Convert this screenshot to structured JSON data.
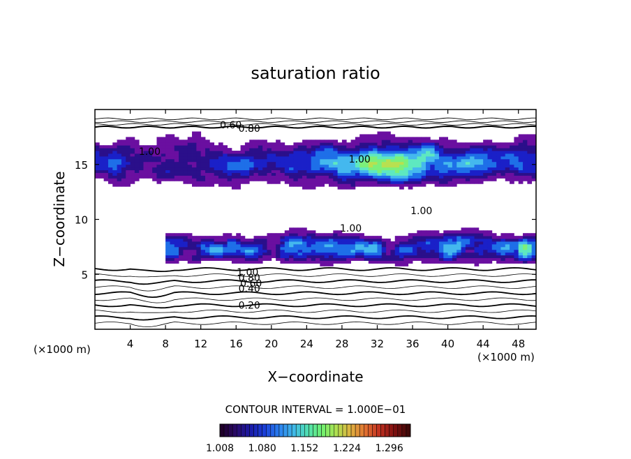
{
  "chart_data": {
    "type": "heatmap",
    "title": "saturation ratio",
    "xlabel": "X−coordinate",
    "ylabel": "Z−coordinate",
    "x_unit": "(×1000 m)",
    "y_unit": "(×1000 m)",
    "xlim": [
      0,
      50
    ],
    "ylim": [
      0,
      20
    ],
    "x_ticks": [
      {
        "value": 4,
        "label": "4"
      },
      {
        "value": 8,
        "label": "8"
      },
      {
        "value": 12,
        "label": "12"
      },
      {
        "value": 16,
        "label": "16"
      },
      {
        "value": 20,
        "label": "20"
      },
      {
        "value": 24,
        "label": "24"
      },
      {
        "value": 28,
        "label": "28"
      },
      {
        "value": 32,
        "label": "32"
      },
      {
        "value": 36,
        "label": "36"
      },
      {
        "value": 40,
        "label": "40"
      },
      {
        "value": 44,
        "label": "44"
      },
      {
        "value": 48,
        "label": "48"
      }
    ],
    "y_ticks": [
      {
        "value": 5,
        "label": "5"
      },
      {
        "value": 10,
        "label": "10"
      },
      {
        "value": 15,
        "label": "15"
      }
    ],
    "contour_interval_text": "CONTOUR INTERVAL = 1.000E−01",
    "colorbar": {
      "min": 1.008,
      "max": 1.332,
      "tick_labels": [
        "1.008",
        "1.080",
        "1.152",
        "1.224",
        "1.296"
      ],
      "tick_values": [
        1.008,
        1.08,
        1.152,
        1.224,
        1.296
      ],
      "colors": [
        "#6a0fa0",
        "#2a0f8a",
        "#1a20c8",
        "#1e6fe8",
        "#44b8ee",
        "#5ee8c0",
        "#7cf07a",
        "#b8e050",
        "#e0a040",
        "#d04020",
        "#901010"
      ]
    },
    "contour_labels": [
      {
        "x": 15.4,
        "z": 18.6,
        "label": "0.60"
      },
      {
        "x": 17.5,
        "z": 18.3,
        "label": "0.80"
      },
      {
        "x": 6.2,
        "z": 16.2,
        "label": "1.00"
      },
      {
        "x": 30.0,
        "z": 15.5,
        "label": "1.00"
      },
      {
        "x": 37.0,
        "z": 10.8,
        "label": "1.00"
      },
      {
        "x": 29.0,
        "z": 9.2,
        "label": "1.00"
      },
      {
        "x": 17.3,
        "z": 5.2,
        "label": "1.00"
      },
      {
        "x": 17.5,
        "z": 4.7,
        "label": "0.80"
      },
      {
        "x": 17.7,
        "z": 4.2,
        "label": "0.60"
      },
      {
        "x": 17.5,
        "z": 3.7,
        "label": "0.40"
      },
      {
        "x": 17.5,
        "z": 2.2,
        "label": "0.20"
      }
    ],
    "contour_levels_bottom": [
      0.1,
      0.2,
      0.3,
      0.4,
      0.5,
      0.6,
      0.7,
      0.8,
      0.9,
      1.0
    ],
    "supersaturated_regions": [
      {
        "level": "low",
        "x_range": [
          0,
          50
        ],
        "z_range": [
          12.5,
          18.3
        ]
      },
      {
        "level": "mid",
        "x_range": [
          20,
          48
        ],
        "z_range": [
          12.5,
          17.5
        ]
      },
      {
        "level": "high",
        "x_range": [
          8,
          50
        ],
        "z_range": [
          5.2,
          9.8
        ]
      }
    ]
  }
}
